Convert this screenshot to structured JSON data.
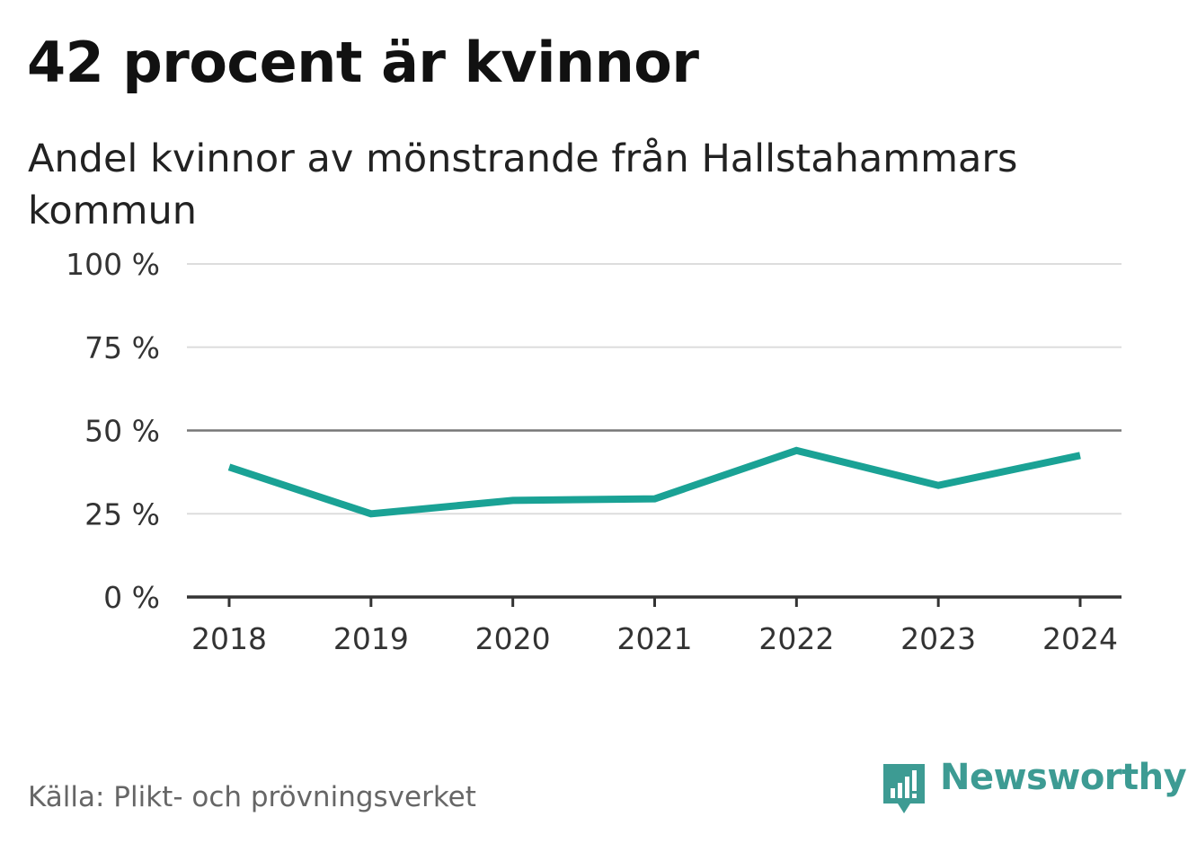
{
  "title": "42 procent är kvinnor",
  "subtitle": "Andel kvinnor av mönstrande från Hallstahammars kommun",
  "source": "Källa: Plikt- och prövningsverket",
  "brand": "Newsworthy",
  "colors": {
    "line": "#1aa295",
    "grid": "#dddddd",
    "reference": "#777777",
    "axis": "#333333",
    "brand": "#3d9b93"
  },
  "chart_data": {
    "type": "line",
    "title": "42 procent är kvinnor",
    "subtitle": "Andel kvinnor av mönstrande från Hallstahammars kommun",
    "xlabel": "",
    "ylabel": "",
    "categories": [
      "2018",
      "2019",
      "2020",
      "2021",
      "2022",
      "2023",
      "2024"
    ],
    "series": [
      {
        "name": "Andel kvinnor",
        "values": [
          39,
          25,
          29,
          29.5,
          44,
          33.5,
          42.5
        ]
      }
    ],
    "ylim": [
      0,
      100
    ],
    "yticks": [
      0,
      25,
      50,
      75,
      100
    ],
    "ytick_labels": [
      "0 %",
      "25 %",
      "50 %",
      "75 %",
      "100 %"
    ],
    "reference_line": 50,
    "grid": true,
    "legend": "none"
  }
}
